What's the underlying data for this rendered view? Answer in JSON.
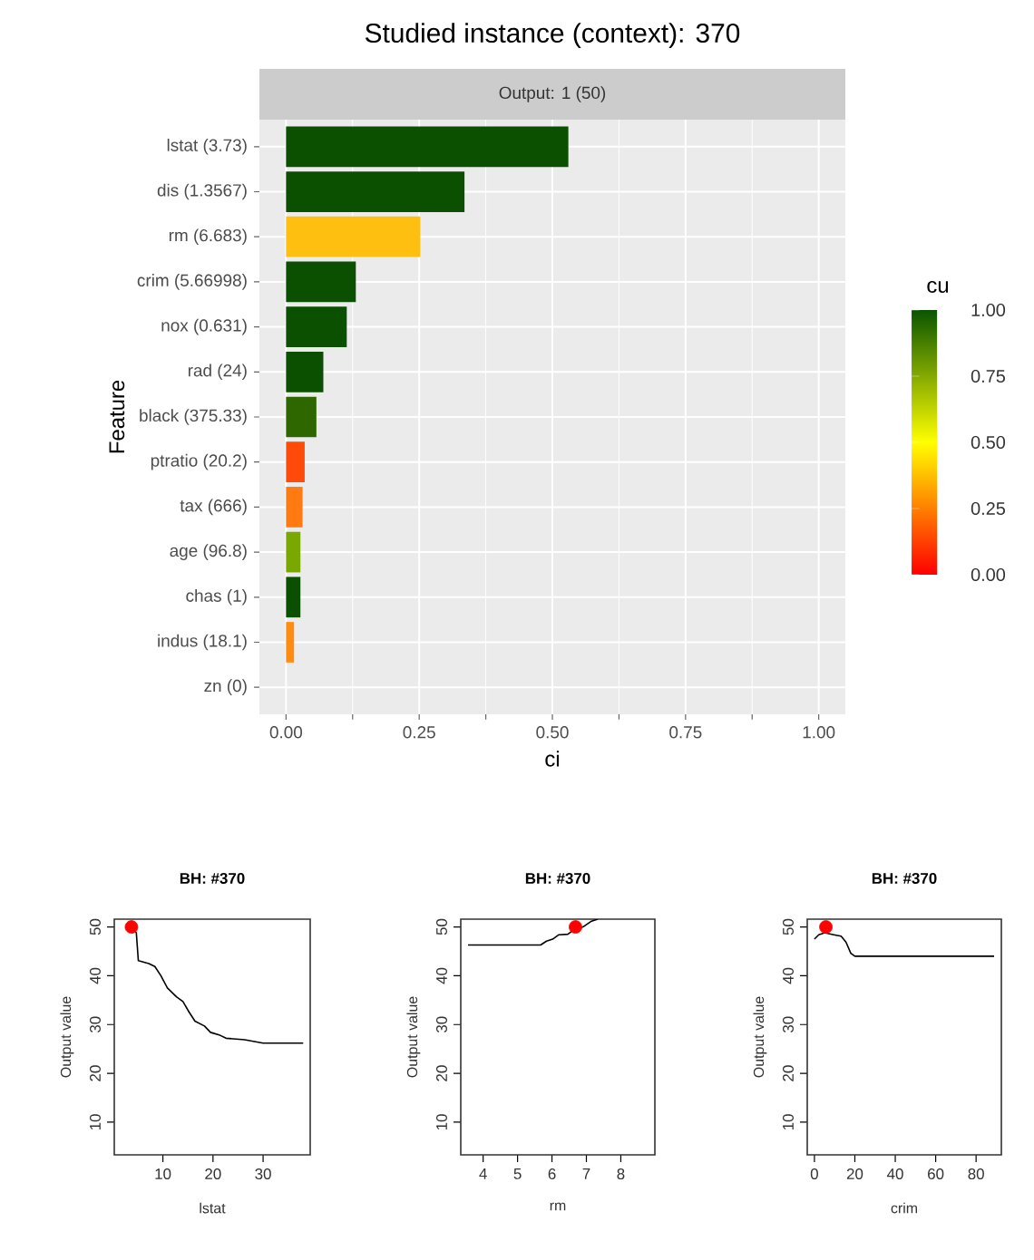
{
  "chart_data": [
    {
      "type": "bar",
      "orientation": "horizontal",
      "title": "Studied instance (context): 370",
      "subtitle": "Output: 1 (50)",
      "xlabel": "ci",
      "ylabel": "Feature",
      "categories": [
        "lstat (3.73)",
        "dis (1.3567)",
        "rm (6.683)",
        "crim (5.66998)",
        "nox (0.631)",
        "rad (24)",
        "black (375.33)",
        "ptratio (20.2)",
        "tax (666)",
        "age (96.8)",
        "chas (1)",
        "indus (18.1)",
        "zn (0)"
      ],
      "values": [
        0.53,
        0.335,
        0.252,
        0.131,
        0.114,
        0.07,
        0.057,
        0.035,
        0.031,
        0.027,
        0.027,
        0.015,
        0
      ],
      "colors": [
        "#0b4f00",
        "#0b4f00",
        "#ffbf10",
        "#0b4f00",
        "#0b4f00",
        "#0b4f00",
        "#2e6600",
        "#ff4a0a",
        "#ff7a10",
        "#7aa800",
        "#0b4f00",
        "#ff8c10",
        "#0b4f00"
      ],
      "xlim": [
        -0.05,
        1.05
      ],
      "xticks": [
        {
          "value": 0,
          "label": "0.00"
        },
        {
          "value": 0.25,
          "label": "0.25"
        },
        {
          "value": 0.5,
          "label": "0.50"
        },
        {
          "value": 0.75,
          "label": "0.75"
        },
        {
          "value": 1,
          "label": "1.00"
        }
      ],
      "grid": true,
      "clabel": "cu",
      "clim": [
        0,
        1
      ],
      "cticks": [
        {
          "value": 0,
          "label": "0.00"
        },
        {
          "value": 0.25,
          "label": "0.25"
        },
        {
          "value": 0.5,
          "label": "0.50"
        },
        {
          "value": 0.75,
          "label": "0.75"
        },
        {
          "value": 1,
          "label": "1.00"
        }
      ]
    },
    {
      "type": "line",
      "title": "BH: #370",
      "xlabel": "lstat",
      "ylabel": "Output value",
      "xlim": [
        0.3,
        39.4
      ],
      "ylim": [
        3.3,
        51.6
      ],
      "xticks": [
        10,
        20,
        30
      ],
      "yticks": [
        10,
        20,
        30,
        40,
        50
      ],
      "series": [
        {
          "type": "line",
          "color": "#000000",
          "x": [
            3.5,
            4.7,
            5.1,
            7.2,
            8.4,
            9.6,
            10.9,
            12.7,
            14.0,
            15.2,
            16.4,
            18.3,
            19.5,
            21.4,
            22.6,
            26.3,
            30,
            38.0
          ],
          "values": [
            50.2,
            48.8,
            43.1,
            42.5,
            41.9,
            40.0,
            37.5,
            35.7,
            34.7,
            32.6,
            30.7,
            29.7,
            28.4,
            27.8,
            27.2,
            26.9,
            26.2,
            26.2
          ]
        },
        {
          "type": "scatter",
          "color": "#ff0000",
          "marker": "circle",
          "x": [
            3.73
          ],
          "values": [
            50
          ]
        }
      ]
    },
    {
      "type": "line",
      "title": "BH: #370",
      "xlabel": "rm",
      "ylabel": "Output value",
      "xlim": [
        3.35,
        8.99
      ],
      "ylim": [
        3.3,
        51.6
      ],
      "xticks": [
        4,
        5,
        6,
        7,
        8
      ],
      "yticks": [
        10,
        20,
        30,
        40,
        50
      ],
      "series": [
        {
          "type": "line",
          "color": "#000000",
          "x": [
            3.56,
            5.67,
            5.84,
            6.02,
            6.2,
            6.46,
            6.63,
            6.9,
            7.15,
            7.33
          ],
          "values": [
            46.3,
            46.3,
            47.1,
            47.5,
            48.4,
            48.5,
            49.4,
            50,
            51.2,
            51.6
          ]
        },
        {
          "type": "scatter",
          "color": "#ff0000",
          "marker": "circle",
          "x": [
            6.683
          ],
          "values": [
            50
          ]
        }
      ]
    },
    {
      "type": "line",
      "title": "BH: #370",
      "xlabel": "crim",
      "ylabel": "Output value",
      "xlim": [
        -3.55,
        92.5
      ],
      "ylim": [
        3.3,
        51.6
      ],
      "xticks": [
        0,
        20,
        40,
        60,
        80
      ],
      "yticks": [
        10,
        20,
        30,
        40,
        50
      ],
      "series": [
        {
          "type": "line",
          "color": "#000000",
          "x": [
            0,
            2.1,
            5.1,
            9.6,
            13.2,
            15.6,
            18,
            20,
            88.9
          ],
          "values": [
            47.5,
            48.4,
            48.8,
            48.4,
            48.1,
            46.9,
            44.6,
            44.0,
            44.0
          ]
        },
        {
          "type": "scatter",
          "color": "#ff0000",
          "marker": "circle",
          "x": [
            5.67
          ],
          "values": [
            50
          ]
        }
      ]
    }
  ]
}
